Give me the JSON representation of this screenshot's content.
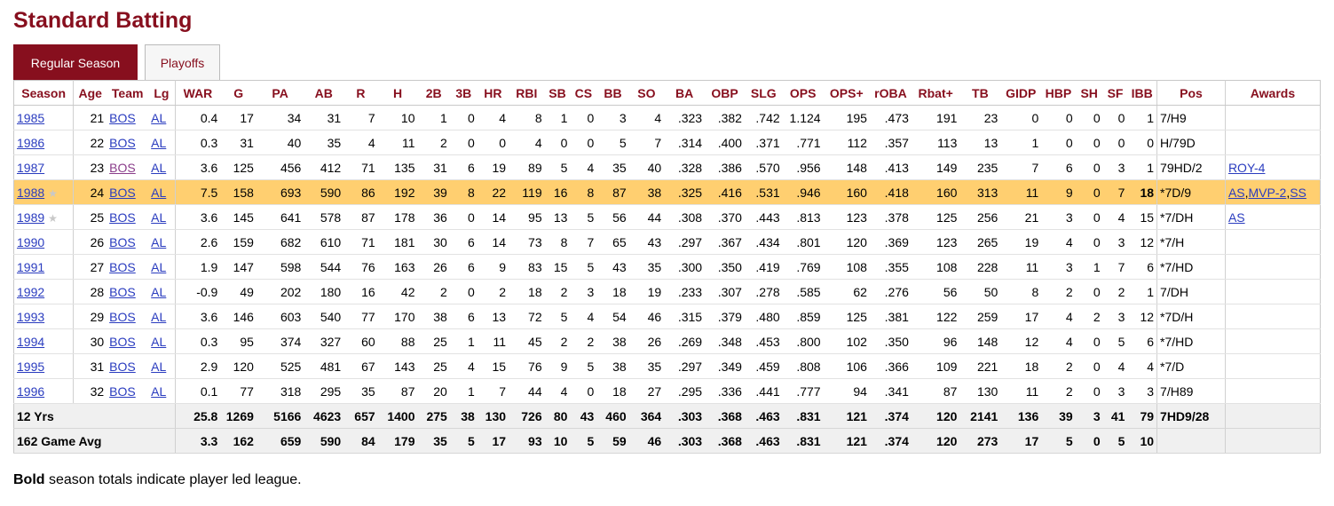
{
  "title": "Standard Batting",
  "tabs": [
    {
      "label": "Regular Season",
      "active": true
    },
    {
      "label": "Playoffs",
      "active": false
    }
  ],
  "columns": [
    "Season",
    "Age",
    "Team",
    "Lg",
    "WAR",
    "G",
    "PA",
    "AB",
    "R",
    "H",
    "2B",
    "3B",
    "HR",
    "RBI",
    "SB",
    "CS",
    "BB",
    "SO",
    "BA",
    "OBP",
    "SLG",
    "OPS",
    "OPS+",
    "rOBA",
    "Rbat+",
    "TB",
    "GIDP",
    "HBP",
    "SH",
    "SF",
    "IBB",
    "Pos",
    "Awards"
  ],
  "rows": [
    {
      "season": "1985",
      "age": "21",
      "team": "BOS",
      "lg": "AL",
      "war": "0.4",
      "g": "17",
      "pa": "34",
      "ab": "31",
      "r": "7",
      "h": "10",
      "b2": "1",
      "b3": "0",
      "hr": "4",
      "rbi": "8",
      "sb": "1",
      "cs": "0",
      "bb": "3",
      "so": "4",
      "ba": ".323",
      "obp": ".382",
      "slg": ".742",
      "ops": "1.124",
      "opsp": "195",
      "roba": ".473",
      "rbat": "191",
      "tb": "23",
      "gidp": "0",
      "hbp": "0",
      "sh": "0",
      "sf": "0",
      "ibb": "1",
      "pos": "7/H9",
      "awards": [],
      "allstar": false,
      "highlight": false,
      "team_visited": false,
      "bold": []
    },
    {
      "season": "1986",
      "age": "22",
      "team": "BOS",
      "lg": "AL",
      "war": "0.3",
      "g": "31",
      "pa": "40",
      "ab": "35",
      "r": "4",
      "h": "11",
      "b2": "2",
      "b3": "0",
      "hr": "0",
      "rbi": "4",
      "sb": "0",
      "cs": "0",
      "bb": "5",
      "so": "7",
      "ba": ".314",
      "obp": ".400",
      "slg": ".371",
      "ops": ".771",
      "opsp": "112",
      "roba": ".357",
      "rbat": "113",
      "tb": "13",
      "gidp": "1",
      "hbp": "0",
      "sh": "0",
      "sf": "0",
      "ibb": "0",
      "pos": "H/79D",
      "awards": [],
      "allstar": false,
      "highlight": false,
      "team_visited": false,
      "bold": []
    },
    {
      "season": "1987",
      "age": "23",
      "team": "BOS",
      "lg": "AL",
      "war": "3.6",
      "g": "125",
      "pa": "456",
      "ab": "412",
      "r": "71",
      "h": "135",
      "b2": "31",
      "b3": "6",
      "hr": "19",
      "rbi": "89",
      "sb": "5",
      "cs": "4",
      "bb": "35",
      "so": "40",
      "ba": ".328",
      "obp": ".386",
      "slg": ".570",
      "ops": ".956",
      "opsp": "148",
      "roba": ".413",
      "rbat": "149",
      "tb": "235",
      "gidp": "7",
      "hbp": "6",
      "sh": "0",
      "sf": "3",
      "ibb": "1",
      "pos": "79HD/2",
      "awards": [
        "ROY-4"
      ],
      "allstar": false,
      "highlight": false,
      "team_visited": true,
      "bold": []
    },
    {
      "season": "1988",
      "age": "24",
      "team": "BOS",
      "lg": "AL",
      "war": "7.5",
      "g": "158",
      "pa": "693",
      "ab": "590",
      "r": "86",
      "h": "192",
      "b2": "39",
      "b3": "8",
      "hr": "22",
      "rbi": "119",
      "sb": "16",
      "cs": "8",
      "bb": "87",
      "so": "38",
      "ba": ".325",
      "obp": ".416",
      "slg": ".531",
      "ops": ".946",
      "opsp": "160",
      "roba": ".418",
      "rbat": "160",
      "tb": "313",
      "gidp": "11",
      "hbp": "9",
      "sh": "0",
      "sf": "7",
      "ibb": "18",
      "pos": "*7D/9",
      "awards": [
        "AS",
        "MVP-2",
        "SS"
      ],
      "allstar": true,
      "highlight": true,
      "team_visited": false,
      "bold": [
        "ibb"
      ]
    },
    {
      "season": "1989",
      "age": "25",
      "team": "BOS",
      "lg": "AL",
      "war": "3.6",
      "g": "145",
      "pa": "641",
      "ab": "578",
      "r": "87",
      "h": "178",
      "b2": "36",
      "b3": "0",
      "hr": "14",
      "rbi": "95",
      "sb": "13",
      "cs": "5",
      "bb": "56",
      "so": "44",
      "ba": ".308",
      "obp": ".370",
      "slg": ".443",
      "ops": ".813",
      "opsp": "123",
      "roba": ".378",
      "rbat": "125",
      "tb": "256",
      "gidp": "21",
      "hbp": "3",
      "sh": "0",
      "sf": "4",
      "ibb": "15",
      "pos": "*7/DH",
      "awards": [
        "AS"
      ],
      "allstar": true,
      "highlight": false,
      "team_visited": false,
      "bold": []
    },
    {
      "season": "1990",
      "age": "26",
      "team": "BOS",
      "lg": "AL",
      "war": "2.6",
      "g": "159",
      "pa": "682",
      "ab": "610",
      "r": "71",
      "h": "181",
      "b2": "30",
      "b3": "6",
      "hr": "14",
      "rbi": "73",
      "sb": "8",
      "cs": "7",
      "bb": "65",
      "so": "43",
      "ba": ".297",
      "obp": ".367",
      "slg": ".434",
      "ops": ".801",
      "opsp": "120",
      "roba": ".369",
      "rbat": "123",
      "tb": "265",
      "gidp": "19",
      "hbp": "4",
      "sh": "0",
      "sf": "3",
      "ibb": "12",
      "pos": "*7/H",
      "awards": [],
      "allstar": false,
      "highlight": false,
      "team_visited": false,
      "bold": []
    },
    {
      "season": "1991",
      "age": "27",
      "team": "BOS",
      "lg": "AL",
      "war": "1.9",
      "g": "147",
      "pa": "598",
      "ab": "544",
      "r": "76",
      "h": "163",
      "b2": "26",
      "b3": "6",
      "hr": "9",
      "rbi": "83",
      "sb": "15",
      "cs": "5",
      "bb": "43",
      "so": "35",
      "ba": ".300",
      "obp": ".350",
      "slg": ".419",
      "ops": ".769",
      "opsp": "108",
      "roba": ".355",
      "rbat": "108",
      "tb": "228",
      "gidp": "11",
      "hbp": "3",
      "sh": "1",
      "sf": "7",
      "ibb": "6",
      "pos": "*7/HD",
      "awards": [],
      "allstar": false,
      "highlight": false,
      "team_visited": false,
      "bold": []
    },
    {
      "season": "1992",
      "age": "28",
      "team": "BOS",
      "lg": "AL",
      "war": "-0.9",
      "g": "49",
      "pa": "202",
      "ab": "180",
      "r": "16",
      "h": "42",
      "b2": "2",
      "b3": "0",
      "hr": "2",
      "rbi": "18",
      "sb": "2",
      "cs": "3",
      "bb": "18",
      "so": "19",
      "ba": ".233",
      "obp": ".307",
      "slg": ".278",
      "ops": ".585",
      "opsp": "62",
      "roba": ".276",
      "rbat": "56",
      "tb": "50",
      "gidp": "8",
      "hbp": "2",
      "sh": "0",
      "sf": "2",
      "ibb": "1",
      "pos": "7/DH",
      "awards": [],
      "allstar": false,
      "highlight": false,
      "team_visited": false,
      "bold": []
    },
    {
      "season": "1993",
      "age": "29",
      "team": "BOS",
      "lg": "AL",
      "war": "3.6",
      "g": "146",
      "pa": "603",
      "ab": "540",
      "r": "77",
      "h": "170",
      "b2": "38",
      "b3": "6",
      "hr": "13",
      "rbi": "72",
      "sb": "5",
      "cs": "4",
      "bb": "54",
      "so": "46",
      "ba": ".315",
      "obp": ".379",
      "slg": ".480",
      "ops": ".859",
      "opsp": "125",
      "roba": ".381",
      "rbat": "122",
      "tb": "259",
      "gidp": "17",
      "hbp": "4",
      "sh": "2",
      "sf": "3",
      "ibb": "12",
      "pos": "*7D/H",
      "awards": [],
      "allstar": false,
      "highlight": false,
      "team_visited": false,
      "bold": []
    },
    {
      "season": "1994",
      "age": "30",
      "team": "BOS",
      "lg": "AL",
      "war": "0.3",
      "g": "95",
      "pa": "374",
      "ab": "327",
      "r": "60",
      "h": "88",
      "b2": "25",
      "b3": "1",
      "hr": "11",
      "rbi": "45",
      "sb": "2",
      "cs": "2",
      "bb": "38",
      "so": "26",
      "ba": ".269",
      "obp": ".348",
      "slg": ".453",
      "ops": ".800",
      "opsp": "102",
      "roba": ".350",
      "rbat": "96",
      "tb": "148",
      "gidp": "12",
      "hbp": "4",
      "sh": "0",
      "sf": "5",
      "ibb": "6",
      "pos": "*7/HD",
      "awards": [],
      "allstar": false,
      "highlight": false,
      "team_visited": false,
      "bold": []
    },
    {
      "season": "1995",
      "age": "31",
      "team": "BOS",
      "lg": "AL",
      "war": "2.9",
      "g": "120",
      "pa": "525",
      "ab": "481",
      "r": "67",
      "h": "143",
      "b2": "25",
      "b3": "4",
      "hr": "15",
      "rbi": "76",
      "sb": "9",
      "cs": "5",
      "bb": "38",
      "so": "35",
      "ba": ".297",
      "obp": ".349",
      "slg": ".459",
      "ops": ".808",
      "opsp": "106",
      "roba": ".366",
      "rbat": "109",
      "tb": "221",
      "gidp": "18",
      "hbp": "2",
      "sh": "0",
      "sf": "4",
      "ibb": "4",
      "pos": "*7/D",
      "awards": [],
      "allstar": false,
      "highlight": false,
      "team_visited": false,
      "bold": []
    },
    {
      "season": "1996",
      "age": "32",
      "team": "BOS",
      "lg": "AL",
      "war": "0.1",
      "g": "77",
      "pa": "318",
      "ab": "295",
      "r": "35",
      "h": "87",
      "b2": "20",
      "b3": "1",
      "hr": "7",
      "rbi": "44",
      "sb": "4",
      "cs": "0",
      "bb": "18",
      "so": "27",
      "ba": ".295",
      "obp": ".336",
      "slg": ".441",
      "ops": ".777",
      "opsp": "94",
      "roba": ".341",
      "rbat": "87",
      "tb": "130",
      "gidp": "11",
      "hbp": "2",
      "sh": "0",
      "sf": "3",
      "ibb": "3",
      "pos": "7/H89",
      "awards": [],
      "allstar": false,
      "highlight": false,
      "team_visited": false,
      "bold": []
    }
  ],
  "footer": [
    {
      "label": "12 Yrs",
      "war": "25.8",
      "g": "1269",
      "pa": "5166",
      "ab": "4623",
      "r": "657",
      "h": "1400",
      "b2": "275",
      "b3": "38",
      "hr": "130",
      "rbi": "726",
      "sb": "80",
      "cs": "43",
      "bb": "460",
      "so": "364",
      "ba": ".303",
      "obp": ".368",
      "slg": ".463",
      "ops": ".831",
      "opsp": "121",
      "roba": ".374",
      "rbat": "120",
      "tb": "2141",
      "gidp": "136",
      "hbp": "39",
      "sh": "3",
      "sf": "41",
      "ibb": "79",
      "pos": "7HD9/28"
    },
    {
      "label": "162 Game Avg",
      "war": "3.3",
      "g": "162",
      "pa": "659",
      "ab": "590",
      "r": "84",
      "h": "179",
      "b2": "35",
      "b3": "5",
      "hr": "17",
      "rbi": "93",
      "sb": "10",
      "cs": "5",
      "bb": "59",
      "so": "46",
      "ba": ".303",
      "obp": ".368",
      "slg": ".463",
      "ops": ".831",
      "opsp": "121",
      "roba": ".374",
      "rbat": "120",
      "tb": "273",
      "gidp": "17",
      "hbp": "5",
      "sh": "0",
      "sf": "5",
      "ibb": "10",
      "pos": ""
    }
  ],
  "note": {
    "bold": "Bold",
    "text": " season totals indicate player led league."
  },
  "icons": {
    "allstar": "star-icon"
  },
  "colors": {
    "accent": "#870f1e",
    "highlight_row": "#ffcf70",
    "link": "#2a3cbf"
  }
}
